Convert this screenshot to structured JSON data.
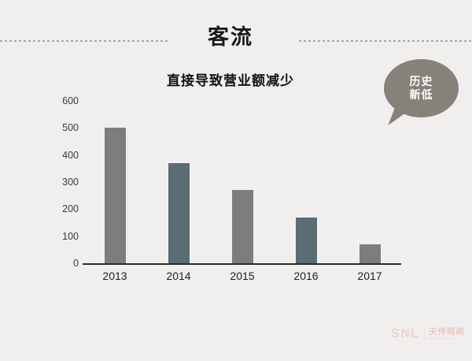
{
  "page": {
    "title": "客流",
    "background": "#f1efee"
  },
  "callout": {
    "line1": "历史",
    "line2": "新低",
    "bg_color": "#868179",
    "text_color": "#ffffff"
  },
  "watermark": {
    "brand": "SNL",
    "divider": "|",
    "name": "天传网络",
    "url": "WWW.SNL.CN"
  },
  "chart_data": {
    "type": "bar",
    "title": "直接导致营业额减少",
    "categories": [
      "2013",
      "2014",
      "2015",
      "2016",
      "2017"
    ],
    "values": [
      500,
      370,
      270,
      170,
      70
    ],
    "bar_colors": [
      "#7f7d7b",
      "#5a6c74",
      "#7f7d7b",
      "#5a6c74",
      "#7f7d7b"
    ],
    "yticks": [
      0,
      100,
      200,
      300,
      400,
      500,
      600
    ],
    "ylim": [
      0,
      600
    ],
    "xlabel": "",
    "ylabel": "",
    "grid": false,
    "legend": null
  }
}
